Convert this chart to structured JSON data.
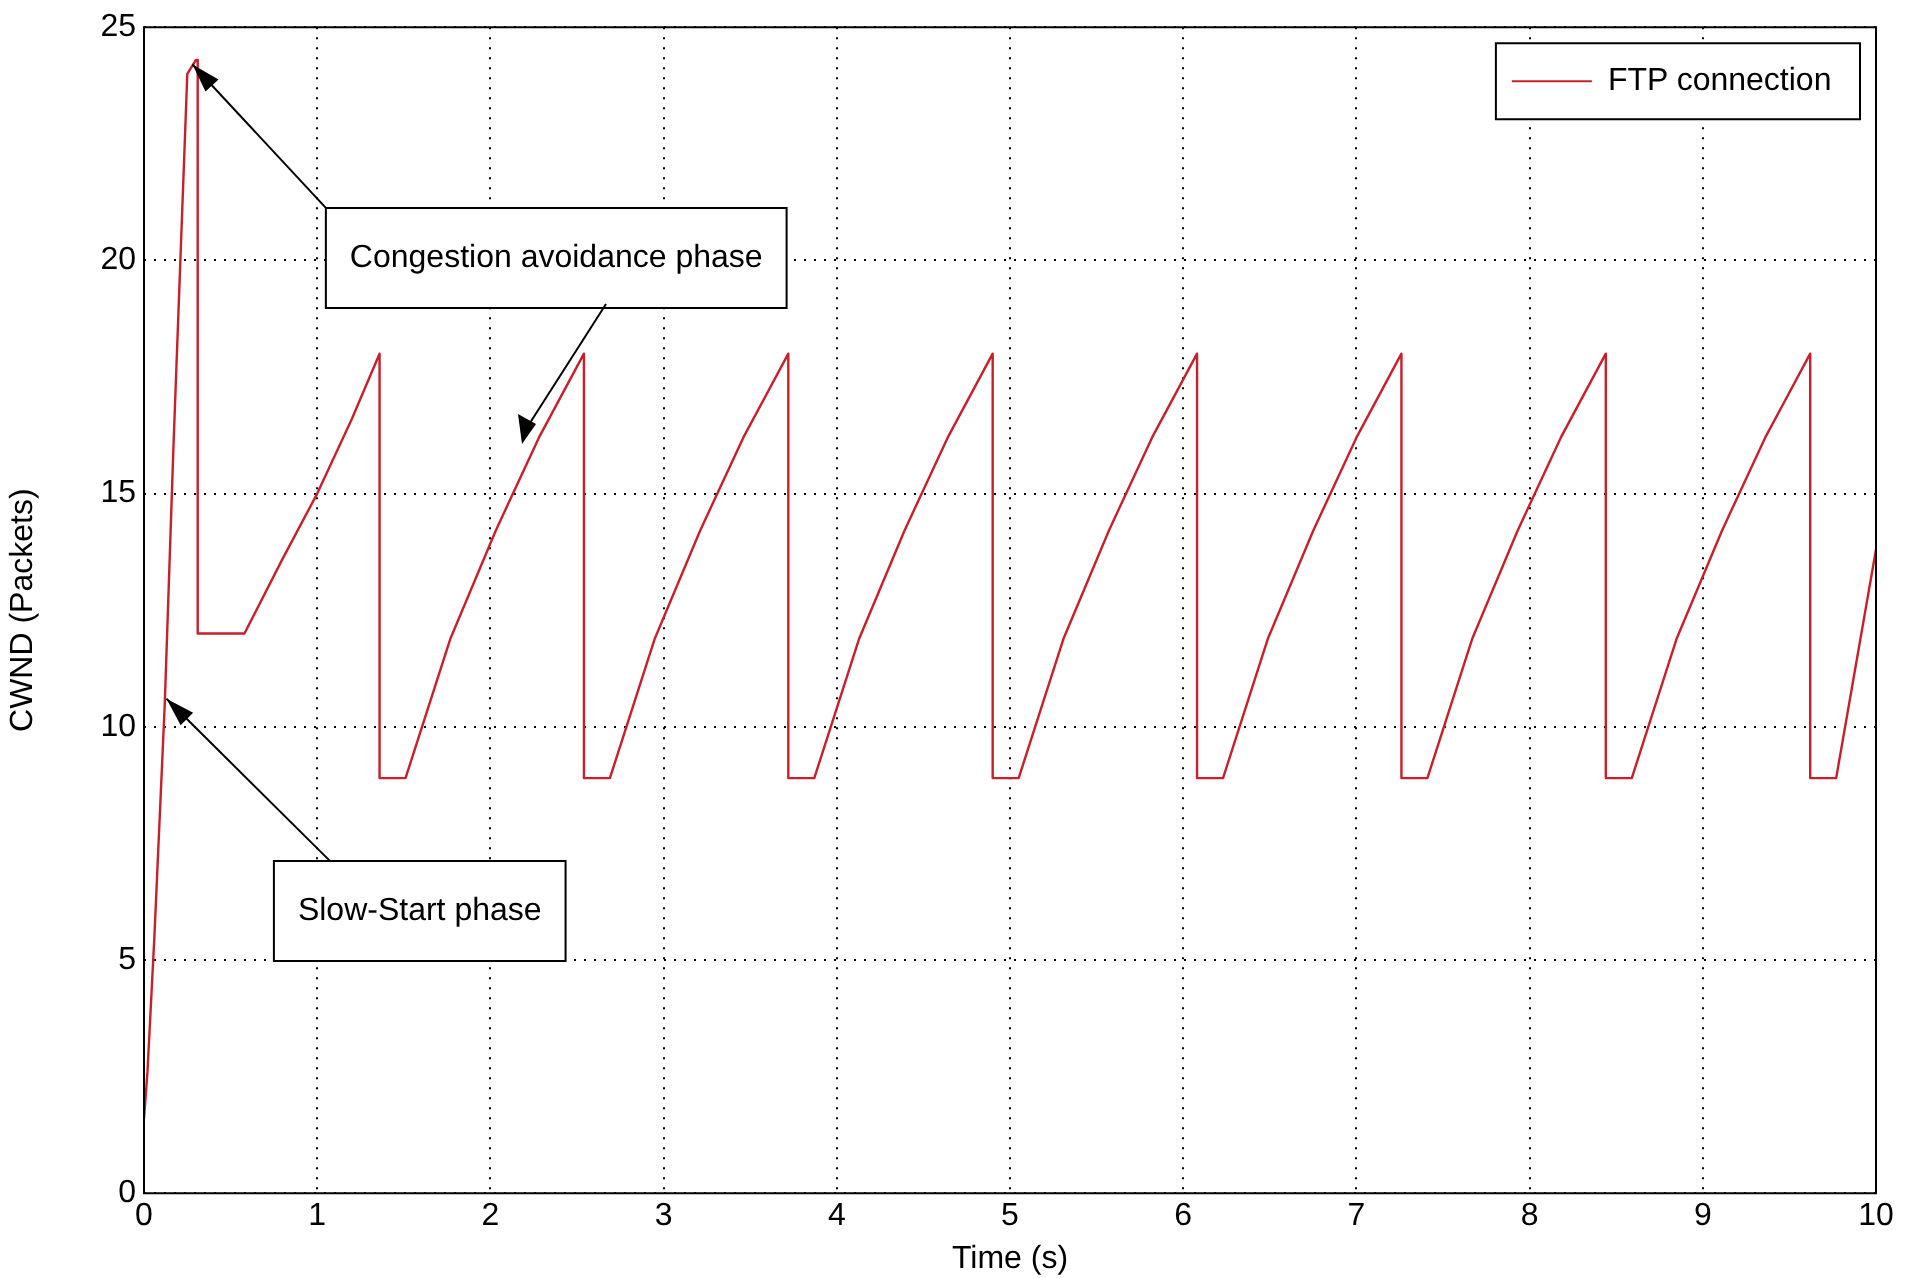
{
  "chart_data": {
    "type": "line",
    "xlabel": "Time (s)",
    "ylabel": "CWND (Packets)",
    "xlim": [
      0,
      10
    ],
    "ylim": [
      0,
      25
    ],
    "xticks": [
      0,
      1,
      2,
      3,
      4,
      5,
      6,
      7,
      8,
      9,
      10
    ],
    "yticks": [
      0,
      5,
      10,
      15,
      20,
      25
    ],
    "grid": true,
    "legend": "top right",
    "marker": "none",
    "line_style": "solid",
    "series": [
      {
        "name": "FTP connection",
        "color": "#c8202a",
        "x": [
          0,
          0.02,
          0.06,
          0.12,
          0.17,
          0.22,
          0.25,
          0.3,
          0.31,
          0.31,
          0.58,
          0.8,
          1.0,
          1.2,
          1.36,
          1.36,
          1.51,
          1.77,
          2.03,
          2.28,
          2.54,
          2.54,
          2.69,
          2.95,
          3.21,
          3.46,
          3.72,
          3.72,
          3.87,
          4.13,
          4.39,
          4.64,
          4.9,
          4.9,
          5.05,
          5.31,
          5.57,
          5.82,
          6.08,
          6.08,
          6.23,
          6.49,
          6.75,
          7.0,
          7.26,
          7.26,
          7.41,
          7.67,
          7.93,
          8.18,
          8.44,
          8.44,
          8.59,
          8.85,
          9.11,
          9.36,
          9.62,
          9.62,
          9.77,
          10
        ],
        "values": [
          1.6,
          2.6,
          5.5,
          10.5,
          16,
          21,
          24,
          24.3,
          24.3,
          12,
          12,
          13.6,
          15,
          16.6,
          18,
          8.9,
          8.9,
          11.9,
          14.2,
          16.2,
          18,
          8.9,
          8.9,
          11.9,
          14.2,
          16.2,
          18,
          8.9,
          8.9,
          11.9,
          14.2,
          16.2,
          18,
          8.9,
          8.9,
          11.9,
          14.2,
          16.2,
          18,
          8.9,
          8.9,
          11.9,
          14.2,
          16.2,
          18,
          8.9,
          8.9,
          11.9,
          14.2,
          16.2,
          18,
          8.9,
          8.9,
          11.9,
          14.2,
          16.2,
          18,
          8.9,
          8.9,
          13.8
        ]
      }
    ],
    "annotations": [
      {
        "text": "Congestion avoidance phase",
        "x": 0.28,
        "y": 24.2
      },
      {
        "text": "Slow-Start phase",
        "x": 0.13,
        "y": 10.6
      }
    ]
  }
}
